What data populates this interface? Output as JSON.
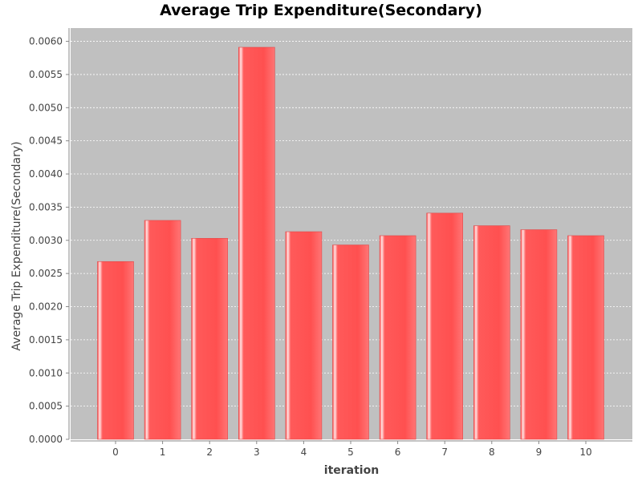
{
  "chart_data": {
    "type": "bar",
    "title": "Average Trip Expenditure(Secondary)",
    "xlabel": "iteration",
    "ylabel": "Average Trip Expenditure(Secondary)",
    "categories": [
      "0",
      "1",
      "2",
      "3",
      "4",
      "5",
      "6",
      "7",
      "8",
      "9",
      "10"
    ],
    "values": [
      0.00268,
      0.0033,
      0.00303,
      0.00591,
      0.00313,
      0.00293,
      0.00307,
      0.00341,
      0.00322,
      0.00316,
      0.00307
    ],
    "ylim": [
      0,
      0.0062
    ],
    "yticks": [
      "0.0000",
      "0.0005",
      "0.0010",
      "0.0015",
      "0.0020",
      "0.0025",
      "0.0030",
      "0.0035",
      "0.0040",
      "0.0045",
      "0.0050",
      "0.0055",
      "0.0060"
    ],
    "grid": true,
    "legend": "none",
    "colors": {
      "bar": "#ff5555",
      "bar_highlight": "#ffdede",
      "plot_background": "#c0c0c0",
      "grid": "#ffffff"
    }
  }
}
